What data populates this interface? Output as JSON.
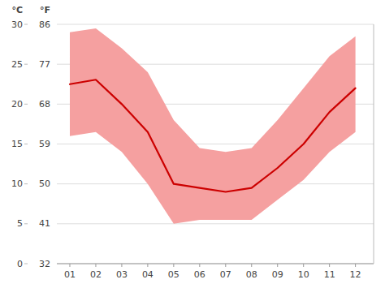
{
  "chart_data": {
    "type": "line",
    "x": [
      1,
      2,
      3,
      4,
      5,
      6,
      7,
      8,
      9,
      10,
      11,
      12
    ],
    "xlim": [
      0.5,
      12.7
    ],
    "xticks": [
      {
        "value": 1,
        "label": "01"
      },
      {
        "value": 2,
        "label": "02"
      },
      {
        "value": 3,
        "label": "03"
      },
      {
        "value": 4,
        "label": "04"
      },
      {
        "value": 5,
        "label": "05"
      },
      {
        "value": 6,
        "label": "06"
      },
      {
        "value": 7,
        "label": "07"
      },
      {
        "value": 8,
        "label": "08"
      },
      {
        "value": 9,
        "label": "09"
      },
      {
        "value": 10,
        "label": "10"
      },
      {
        "value": 11,
        "label": "11"
      },
      {
        "value": 12,
        "label": "12"
      }
    ],
    "ylabel": "°F",
    "y2label": "°C",
    "ylim": [
      32,
      86
    ],
    "yticks": [
      32,
      41,
      50,
      59,
      68,
      77,
      86
    ],
    "y2lim": [
      0,
      30
    ],
    "y2ticks": [
      0,
      5,
      10,
      15,
      20,
      25,
      30
    ],
    "grid": true,
    "series": [
      {
        "type": "area",
        "color": "#f5a0a0",
        "values": [
          84.2,
          85.1,
          80.6,
          75.2,
          64.4,
          58.1,
          57.2,
          58.1,
          64.4,
          71.6,
          78.8,
          83.3
        ],
        "low": [
          60.8,
          61.7,
          57.2,
          50.0,
          41.0,
          41.9,
          41.9,
          41.9,
          46.4,
          50.9,
          57.2,
          61.7
        ]
      },
      {
        "type": "line",
        "color": "#cc0000",
        "values": [
          72.5,
          73.5,
          68.0,
          61.7,
          50.0,
          49.1,
          48.2,
          49.1,
          53.6,
          59.0,
          66.2,
          71.6
        ]
      }
    ]
  }
}
